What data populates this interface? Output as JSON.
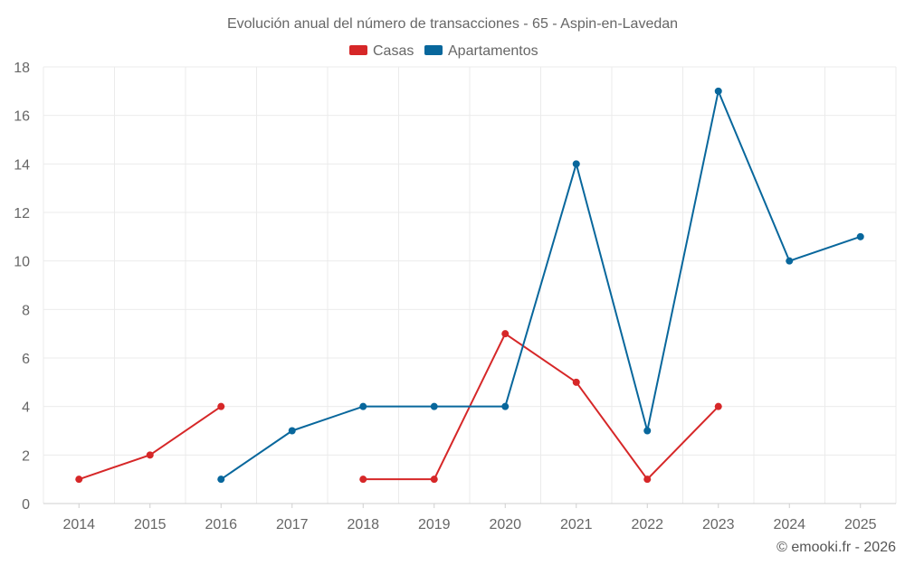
{
  "chart_data": {
    "type": "line",
    "title": "Evolución anual del número de transacciones - 65 - Aspin-en-Lavedan",
    "xlabel": "",
    "ylabel": "",
    "categories": [
      "2014",
      "2015",
      "2016",
      "2017",
      "2018",
      "2019",
      "2020",
      "2021",
      "2022",
      "2023",
      "2024",
      "2025"
    ],
    "ylim": [
      0,
      18
    ],
    "yticks": [
      0,
      2,
      4,
      6,
      8,
      10,
      12,
      14,
      16,
      18
    ],
    "grid": true,
    "legend_position": "top-center",
    "series": [
      {
        "name": "Casas",
        "color": "#d62728",
        "values": [
          1,
          2,
          4,
          null,
          1,
          1,
          7,
          5,
          1,
          4,
          null,
          null
        ]
      },
      {
        "name": "Apartamentos",
        "color": "#08679c",
        "values": [
          null,
          null,
          1,
          3,
          4,
          4,
          4,
          14,
          3,
          17,
          10,
          11
        ]
      }
    ]
  },
  "credit": "© emooki.fr - 2026"
}
